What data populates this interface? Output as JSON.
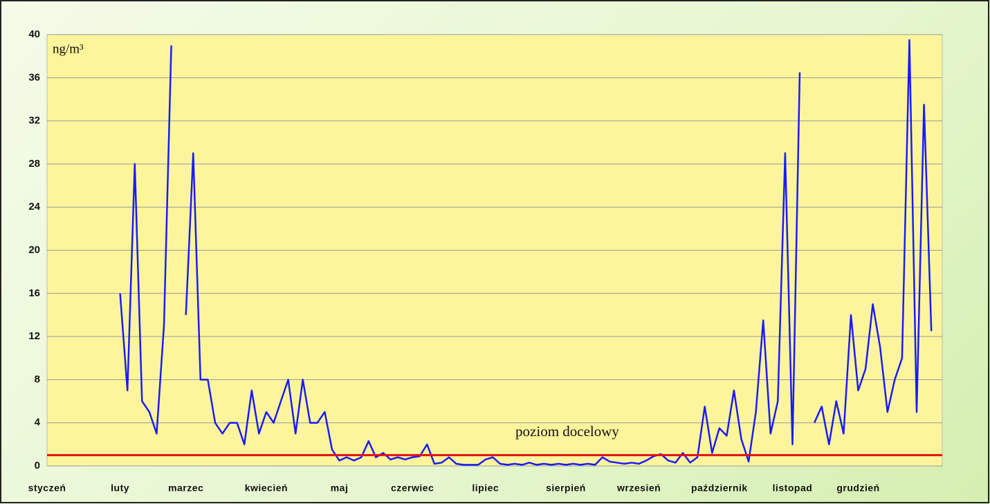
{
  "chart_data": {
    "type": "line",
    "unit_label": "ng/m³",
    "categories": [
      "styczeń",
      null,
      null,
      null,
      null,
      null,
      null,
      null,
      null,
      null,
      "luty",
      null,
      null,
      null,
      null,
      null,
      null,
      null,
      null,
      "marzec",
      null,
      null,
      null,
      null,
      null,
      null,
      null,
      null,
      null,
      null,
      "kwiecień",
      null,
      null,
      null,
      null,
      null,
      null,
      null,
      null,
      null,
      "maj",
      null,
      null,
      null,
      null,
      null,
      null,
      null,
      null,
      null,
      "czerwiec",
      null,
      null,
      null,
      null,
      null,
      null,
      null,
      null,
      null,
      "lipiec",
      null,
      null,
      null,
      null,
      null,
      null,
      null,
      null,
      null,
      null,
      "sierpień",
      null,
      null,
      null,
      null,
      null,
      null,
      null,
      null,
      null,
      "wrzesień",
      null,
      null,
      null,
      null,
      null,
      null,
      null,
      null,
      null,
      null,
      "październik",
      null,
      null,
      null,
      null,
      null,
      null,
      null,
      null,
      null,
      "listopad",
      null,
      null,
      null,
      null,
      null,
      null,
      null,
      null,
      "grudzień",
      null,
      null,
      null,
      null,
      null,
      null,
      null,
      null,
      null,
      null
    ],
    "series": [
      {
        "color": "#1a1aff",
        "values": [
          null,
          null,
          null,
          null,
          null,
          null,
          null,
          null,
          null,
          null,
          16,
          7,
          28,
          6,
          5,
          3,
          13,
          39,
          null,
          14,
          29,
          8,
          8,
          4,
          3,
          4,
          4,
          2,
          7,
          3,
          5,
          4,
          6,
          8,
          3,
          8,
          4,
          4,
          5,
          1.5,
          0.5,
          0.8,
          0.5,
          0.8,
          2.3,
          0.8,
          1.2,
          0.6,
          0.8,
          0.6,
          0.8,
          0.9,
          2,
          0.2,
          0.3,
          0.8,
          0.2,
          0.1,
          0.1,
          0.1,
          0.6,
          0.8,
          0.2,
          0.1,
          0.2,
          0.1,
          0.3,
          0.1,
          0.2,
          0.1,
          0.2,
          0.1,
          0.2,
          0.1,
          0.2,
          0.1,
          0.8,
          0.4,
          0.3,
          0.2,
          0.3,
          0.2,
          0.5,
          0.9,
          1.1,
          0.5,
          0.3,
          1.2,
          0.3,
          0.8,
          5.5,
          1.2,
          3.5,
          2.8,
          7,
          2.5,
          0.4,
          5,
          13.5,
          3,
          6,
          29,
          2,
          36.5,
          null,
          4,
          5.5,
          2,
          6,
          3,
          14,
          7,
          9,
          15,
          11,
          5,
          8,
          10,
          39.5,
          5,
          33.5,
          12.5
        ]
      }
    ],
    "target": {
      "value": 1,
      "label": "poziom docelowy",
      "color": "#e01010"
    },
    "ylim": [
      0,
      40
    ],
    "yticks": [
      0,
      4,
      8,
      12,
      16,
      20,
      24,
      28,
      32,
      36,
      40
    ],
    "grid": true,
    "plot_color": "#fdf59c"
  }
}
